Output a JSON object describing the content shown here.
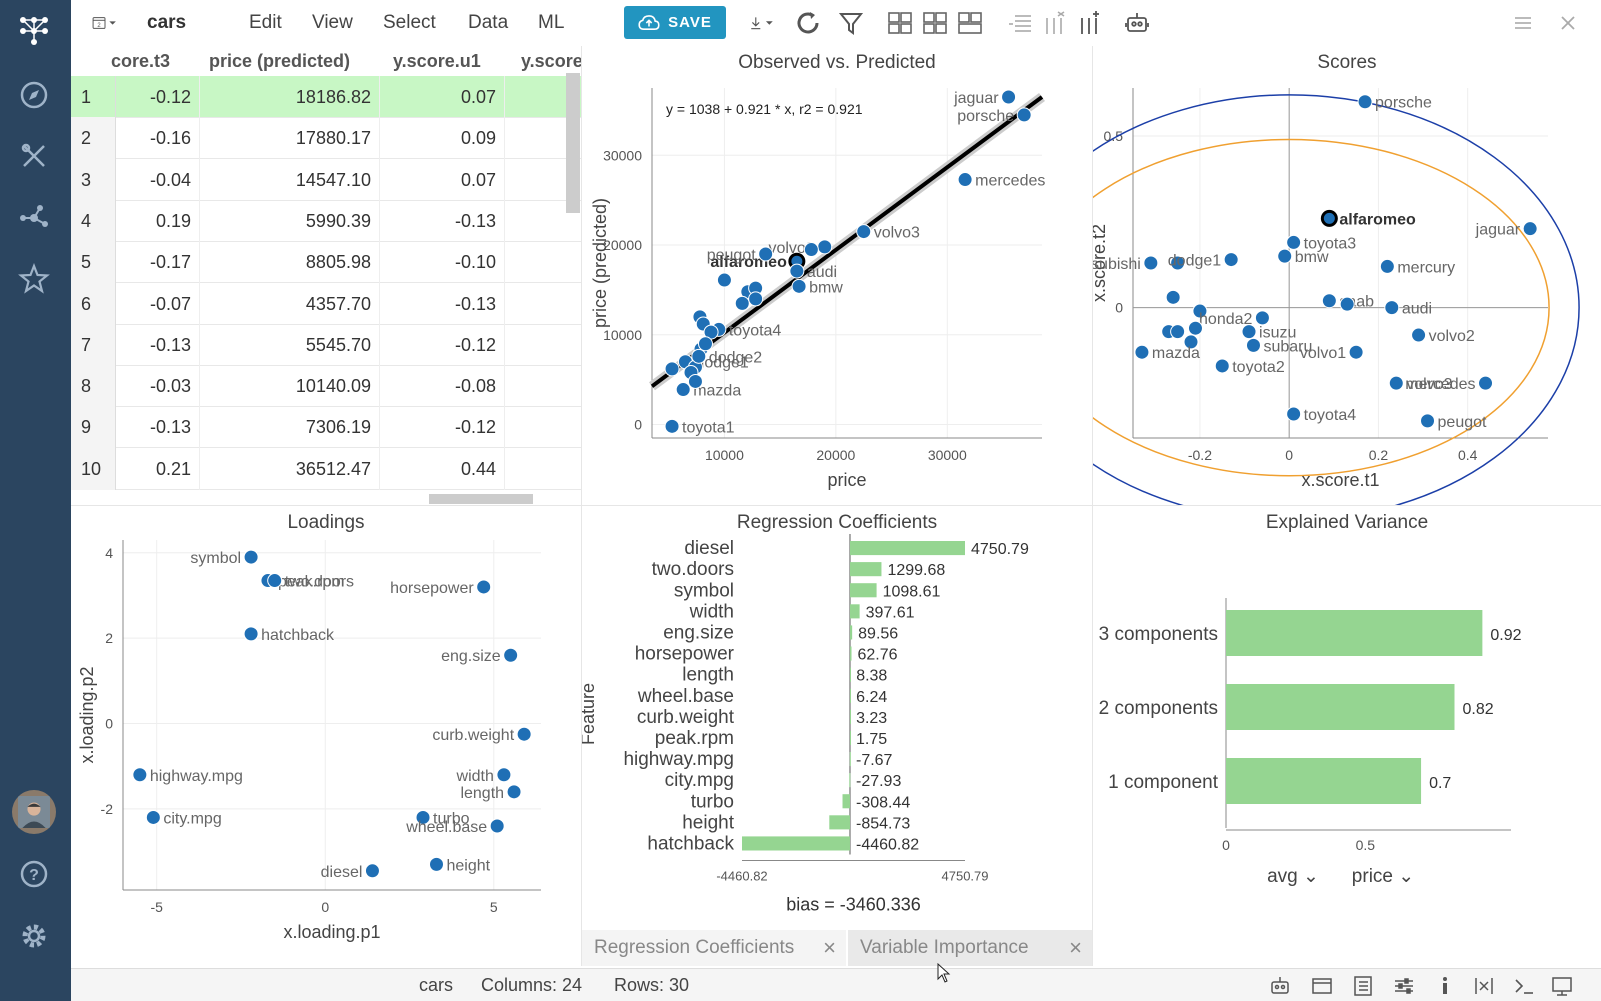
{
  "app": {
    "table_name": "cars",
    "tab_count": "2"
  },
  "menu": [
    {
      "label": "Edit"
    },
    {
      "label": "View"
    },
    {
      "label": "Select"
    },
    {
      "label": "Data"
    },
    {
      "label": "ML"
    }
  ],
  "toolbar": {
    "save_label": "SAVE"
  },
  "grid": {
    "columns": [
      "core.t3",
      "price (predicted)",
      "y.score.u1",
      "y.score"
    ],
    "rows": [
      {
        "idx": "1",
        "t3": "-0.12",
        "price": "18186.82",
        "u1": "0.07"
      },
      {
        "idx": "2",
        "t3": "-0.16",
        "price": "17880.17",
        "u1": "0.09"
      },
      {
        "idx": "3",
        "t3": "-0.04",
        "price": "14547.10",
        "u1": "0.07"
      },
      {
        "idx": "4",
        "t3": "0.19",
        "price": "5990.39",
        "u1": "-0.13"
      },
      {
        "idx": "5",
        "t3": "-0.17",
        "price": "8805.98",
        "u1": "-0.10"
      },
      {
        "idx": "6",
        "t3": "-0.07",
        "price": "4357.70",
        "u1": "-0.13"
      },
      {
        "idx": "7",
        "t3": "-0.13",
        "price": "5545.70",
        "u1": "-0.12"
      },
      {
        "idx": "8",
        "t3": "-0.03",
        "price": "10140.09",
        "u1": "-0.08"
      },
      {
        "idx": "9",
        "t3": "-0.13",
        "price": "7306.19",
        "u1": "-0.12"
      },
      {
        "idx": "10",
        "t3": "0.21",
        "price": "36512.47",
        "u1": "0.44"
      }
    ]
  },
  "colors": {
    "sidebar": "#2b4560",
    "accent": "#2295c0",
    "point": "#1f6fb5",
    "bar": "#95d591",
    "row_selected": "#c8f7c5"
  },
  "chart_data": [
    {
      "type": "scatter",
      "title": "Observed vs. Predicted",
      "xlabel": "price",
      "ylabel": "price (predicted)",
      "equation": "y = 1038 + 0.921 * x,    r2 = 0.921",
      "xlim": [
        3500,
        38500
      ],
      "ylim": [
        -1500,
        37500
      ],
      "xticks": [
        10000,
        20000,
        30000
      ],
      "yticks": [
        0,
        10000,
        20000,
        30000
      ],
      "regression": {
        "intercept": 1038,
        "slope": 0.921
      },
      "points": [
        {
          "x": 35500,
          "y": 36500,
          "label": "jaguar"
        },
        {
          "x": 36900,
          "y": 34500,
          "label": "porsche"
        },
        {
          "x": 31600,
          "y": 27300,
          "label": "mercedes"
        },
        {
          "x": 22500,
          "y": 21500,
          "label": "volvo3"
        },
        {
          "x": 19000,
          "y": 19800,
          "label": "volvo2"
        },
        {
          "x": 16500,
          "y": 18200,
          "label": "alfaromeo",
          "highlight": true
        },
        {
          "x": 13700,
          "y": 19000,
          "label": "peugot"
        },
        {
          "x": 17800,
          "y": 19500,
          "label": ""
        },
        {
          "x": 16700,
          "y": 15400,
          "label": "bmw"
        },
        {
          "x": 16500,
          "y": 17100,
          "label": "audi"
        },
        {
          "x": 10000,
          "y": 16100,
          "label": ""
        },
        {
          "x": 12100,
          "y": 14800,
          "label": ""
        },
        {
          "x": 12800,
          "y": 15200,
          "label": ""
        },
        {
          "x": 11600,
          "y": 13500,
          "label": ""
        },
        {
          "x": 12800,
          "y": 14000,
          "label": ""
        },
        {
          "x": 9500,
          "y": 10600,
          "label": "toyota4"
        },
        {
          "x": 7800,
          "y": 12000,
          "label": ""
        },
        {
          "x": 8100,
          "y": 11200,
          "label": ""
        },
        {
          "x": 8800,
          "y": 10300,
          "label": ""
        },
        {
          "x": 7900,
          "y": 8400,
          "label": ""
        },
        {
          "x": 8300,
          "y": 9000,
          "label": ""
        },
        {
          "x": 5300,
          "y": 6200,
          "label": ""
        },
        {
          "x": 6500,
          "y": 7000,
          "label": "dodge1"
        },
        {
          "x": 7400,
          "y": 6400,
          "label": ""
        },
        {
          "x": 7000,
          "y": 5800,
          "label": ""
        },
        {
          "x": 6300,
          "y": 3900,
          "label": "mazda"
        },
        {
          "x": 7400,
          "y": 4800,
          "label": ""
        },
        {
          "x": 5300,
          "y": -200,
          "label": "toyota1"
        },
        {
          "x": 7700,
          "y": 7600,
          "label": "dodge2"
        }
      ]
    },
    {
      "type": "scatter",
      "title": "Scores",
      "xlabel": "x.score.t1",
      "ylabel": "x.score.t2",
      "xlim": [
        -0.35,
        0.58
      ],
      "ylim": [
        -0.38,
        0.64
      ],
      "xticks": [
        -0.2,
        0,
        0.2,
        0.4
      ],
      "yticks": [
        0,
        0.5
      ],
      "points": [
        {
          "x": 0.17,
          "y": 0.6,
          "label": "porsche"
        },
        {
          "x": 0.09,
          "y": 0.26,
          "label": "alfaromeo",
          "highlight": true
        },
        {
          "x": 0.54,
          "y": 0.23,
          "label": "jaguar"
        },
        {
          "x": -0.31,
          "y": 0.13,
          "label": "mitsubishi"
        },
        {
          "x": -0.25,
          "y": 0.13,
          "label": ""
        },
        {
          "x": 0.01,
          "y": 0.19,
          "label": "toyota3"
        },
        {
          "x": -0.13,
          "y": 0.14,
          "label": "dodge1"
        },
        {
          "x": -0.01,
          "y": 0.15,
          "label": "bmw"
        },
        {
          "x": 0.22,
          "y": 0.12,
          "label": "mercury"
        },
        {
          "x": 0.09,
          "y": 0.02,
          "label": "saab"
        },
        {
          "x": 0.13,
          "y": 0.01,
          "label": ""
        },
        {
          "x": 0.23,
          "y": 0.0,
          "label": "audi"
        },
        {
          "x": -0.26,
          "y": 0.03,
          "label": ""
        },
        {
          "x": -0.2,
          "y": -0.01,
          "label": ""
        },
        {
          "x": -0.06,
          "y": -0.03,
          "label": "honda2"
        },
        {
          "x": -0.21,
          "y": -0.06,
          "label": ""
        },
        {
          "x": -0.27,
          "y": -0.07,
          "label": ""
        },
        {
          "x": -0.25,
          "y": -0.07,
          "label": ""
        },
        {
          "x": -0.22,
          "y": -0.1,
          "label": ""
        },
        {
          "x": -0.09,
          "y": -0.07,
          "label": "isuzu"
        },
        {
          "x": -0.08,
          "y": -0.11,
          "label": "subaru"
        },
        {
          "x": 0.15,
          "y": -0.13,
          "label": "volvo1"
        },
        {
          "x": 0.29,
          "y": -0.08,
          "label": "volvo2"
        },
        {
          "x": -0.15,
          "y": -0.17,
          "label": "toyota2"
        },
        {
          "x": 0.24,
          "y": -0.22,
          "label": "volvo3"
        },
        {
          "x": 0.44,
          "y": -0.22,
          "label": "mercedes"
        },
        {
          "x": -0.33,
          "y": -0.13,
          "label": "mazda"
        },
        {
          "x": 0.01,
          "y": -0.31,
          "label": "toyota4"
        },
        {
          "x": 0.31,
          "y": -0.33,
          "label": "peugot"
        }
      ]
    },
    {
      "type": "scatter",
      "title": "Loadings",
      "xlabel": "x.loading.p1",
      "ylabel": "x.loading.p2",
      "xlim": [
        -6,
        6.4
      ],
      "ylim": [
        -3.9,
        4.3
      ],
      "xticks": [
        -5,
        0,
        5
      ],
      "yticks": [
        -2,
        0,
        2,
        4
      ],
      "points": [
        {
          "x": -2.2,
          "y": 3.9,
          "label": "symbol"
        },
        {
          "x": -1.7,
          "y": 3.35,
          "label": "peak.rpm"
        },
        {
          "x": -1.5,
          "y": 3.35,
          "label": "two.doors"
        },
        {
          "x": 4.7,
          "y": 3.2,
          "label": "horsepower"
        },
        {
          "x": -2.2,
          "y": 2.1,
          "label": "hatchback"
        },
        {
          "x": 5.5,
          "y": 1.6,
          "label": "eng.size"
        },
        {
          "x": 5.9,
          "y": -0.25,
          "label": "curb.weight"
        },
        {
          "x": -5.5,
          "y": -1.2,
          "label": "highway.mpg"
        },
        {
          "x": 5.3,
          "y": -1.2,
          "label": "width"
        },
        {
          "x": 5.6,
          "y": -1.6,
          "label": "length"
        },
        {
          "x": -5.1,
          "y": -2.2,
          "label": "city.mpg"
        },
        {
          "x": 2.9,
          "y": -2.2,
          "label": "turbo"
        },
        {
          "x": 5.1,
          "y": -2.4,
          "label": "wheel.base"
        },
        {
          "x": 1.4,
          "y": -3.45,
          "label": "diesel"
        },
        {
          "x": 3.3,
          "y": -3.3,
          "label": "height"
        }
      ]
    },
    {
      "type": "bar",
      "orientation": "horizontal",
      "title": "Regression Coefficients",
      "ylabel": "Feature",
      "categories": [
        "diesel",
        "two.doors",
        "symbol",
        "width",
        "eng.size",
        "horsepower",
        "length",
        "wheel.base",
        "curb.weight",
        "peak.rpm",
        "highway.mpg",
        "city.mpg",
        "turbo",
        "height",
        "hatchback"
      ],
      "values": [
        4750.79,
        1299.68,
        1098.61,
        397.61,
        89.56,
        62.76,
        8.38,
        6.24,
        3.23,
        1.75,
        -7.67,
        -27.93,
        -308.44,
        -854.73,
        -4460.82
      ],
      "xticks": [
        "-4460.82",
        "4750.79"
      ],
      "xlim": [
        -4460.82,
        4750.79
      ],
      "footer": "bias = -3460.336"
    },
    {
      "type": "bar",
      "orientation": "horizontal",
      "title": "Explained Variance",
      "categories": [
        "3 components",
        "2 components",
        "1 component"
      ],
      "values": [
        0.92,
        0.82,
        0.7
      ],
      "xlim": [
        0,
        1.0
      ],
      "xticks": [
        0,
        0.5
      ],
      "agg": "avg",
      "column": "price"
    }
  ],
  "bottom_tabs": [
    {
      "label": "Regression Coefficients"
    },
    {
      "label": "Variable Importance"
    }
  ],
  "status": {
    "table": "cars",
    "columns": "Columns: 24",
    "rows": "Rows: 30"
  }
}
